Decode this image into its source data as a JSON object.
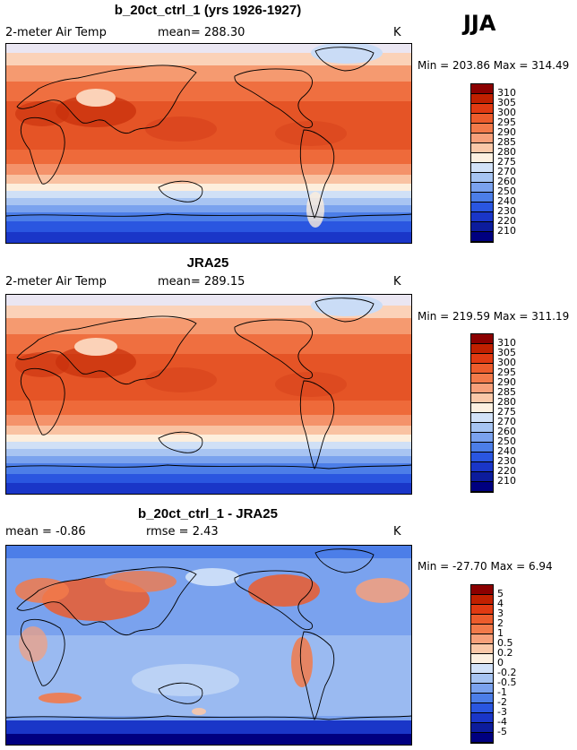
{
  "season": "JJA",
  "panels": [
    {
      "title": "b_20ct_ctrl_1 (yrs 1926-1927)",
      "left_label": "2-meter Air Temp",
      "mean_label": "mean= 288.30",
      "units": "K",
      "minmax": "Min = 203.86 Max = 314.49",
      "colorbar": {
        "levels": [
          "310",
          "305",
          "300",
          "295",
          "290",
          "285",
          "280",
          "275",
          "270",
          "260",
          "250",
          "240",
          "230",
          "220",
          "210"
        ],
        "colors": [
          "#8b0000",
          "#c02000",
          "#e03a12",
          "#ec5c2c",
          "#f27a4a",
          "#f7a07a",
          "#fac8a8",
          "#fdf0e0",
          "#d2e2f8",
          "#a6c4f2",
          "#7aa2ee",
          "#4c7ee8",
          "#2a56e0",
          "#1a36c8",
          "#0c1c9c",
          "#000080"
        ]
      }
    },
    {
      "title": "JRA25",
      "left_label": "2-meter Air Temp",
      "mean_label": "mean= 289.15",
      "units": "K",
      "minmax": "Min = 219.59 Max = 311.19",
      "colorbar": {
        "levels": [
          "310",
          "305",
          "300",
          "295",
          "290",
          "285",
          "280",
          "275",
          "270",
          "260",
          "250",
          "240",
          "230",
          "220",
          "210"
        ],
        "colors": [
          "#8b0000",
          "#c02000",
          "#e03a12",
          "#ec5c2c",
          "#f27a4a",
          "#f7a07a",
          "#fac8a8",
          "#fdf0e0",
          "#d2e2f8",
          "#a6c4f2",
          "#7aa2ee",
          "#4c7ee8",
          "#2a56e0",
          "#1a36c8",
          "#0c1c9c",
          "#000080"
        ]
      }
    },
    {
      "title": "b_20ct_ctrl_1 - JRA25",
      "left_label": "mean =  -0.86",
      "mean_label": "rmse =   2.43",
      "units": "K",
      "minmax": "Min = -27.70 Max =   6.94",
      "colorbar": {
        "levels": [
          "5",
          "4",
          "3",
          "2",
          "1",
          "0.5",
          "0.2",
          "0",
          "-0.2",
          "-0.5",
          "-1",
          "-2",
          "-3",
          "-4",
          "-5"
        ],
        "colors": [
          "#8b0000",
          "#c02000",
          "#e03a12",
          "#ec5c2c",
          "#f27a4a",
          "#f7a07a",
          "#fac8a8",
          "#fdf0e0",
          "#d2e2f8",
          "#a6c4f2",
          "#7aa2ee",
          "#4c7ee8",
          "#2a56e0",
          "#1a36c8",
          "#0c1c9c",
          "#000080"
        ]
      }
    }
  ]
}
